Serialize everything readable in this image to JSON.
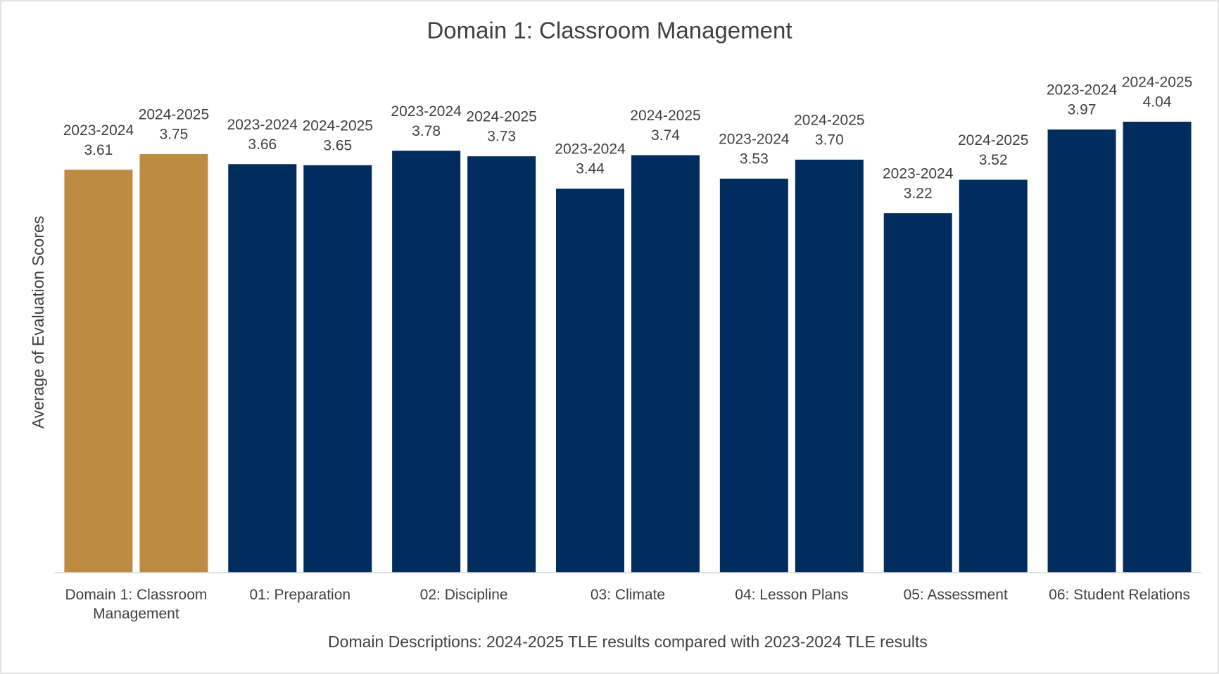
{
  "chart_data": {
    "type": "bar",
    "title": "Domain 1: Classroom Management",
    "x_label": "Domain Descriptions: 2024-2025 TLE results compared with 2023-2024 TLE results",
    "y_label": "Average of Evaluation Scores",
    "categories": [
      "Domain 1: Classroom Management",
      "01: Preparation",
      "02: Discipline",
      "03: Climate",
      "04: Lesson Plans",
      "05: Assessment",
      "06: Student Relations"
    ],
    "category_colors": [
      "#BD8B42",
      "#002D5E",
      "#002D5E",
      "#002D5E",
      "#002D5E",
      "#002D5E",
      "#002D5E"
    ],
    "series": [
      {
        "name": "2023-2024",
        "values": [
          3.61,
          3.66,
          3.78,
          3.44,
          3.53,
          3.22,
          3.97
        ],
        "value_labels": [
          "3.61",
          "3.66",
          "3.78",
          "3.44",
          "3.53",
          "3.22",
          "3.97"
        ]
      },
      {
        "name": "2024-2025",
        "values": [
          3.75,
          3.65,
          3.73,
          3.74,
          3.7,
          3.52,
          4.04
        ],
        "value_labels": [
          "3.75",
          "3.65",
          "3.73",
          "3.74",
          "3.70",
          "3.52",
          "4.04"
        ]
      }
    ],
    "ylim": [
      0,
      4.5
    ],
    "grid": false,
    "legend": false
  }
}
